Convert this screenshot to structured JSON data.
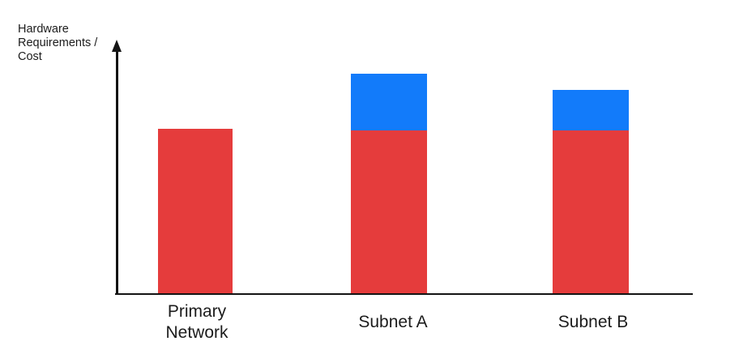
{
  "chart_data": {
    "type": "bar",
    "subtype": "stacked-vertical",
    "title": "",
    "ylabel": "Hardware\nRequirements /\nCost",
    "xlabel": "",
    "categories": [
      "Primary Network",
      "Subnet A",
      "Subnet B"
    ],
    "series": [
      {
        "name": "red-base-segment",
        "color": "#E53C3C",
        "values": [
          203,
          201,
          201
        ]
      },
      {
        "name": "blue-top-segment",
        "color": "#127BFA",
        "values": [
          0,
          70,
          50
        ]
      }
    ],
    "value_axis": {
      "tick_labels": "none",
      "units": "relative height (unlabeled axis)"
    },
    "grid": "off",
    "legend": "none",
    "notes": "Axis drawn as black arrow pointing up; no numeric ticks shown"
  },
  "colors": {
    "red": "#E53C3C",
    "blue": "#127BFA",
    "axis": "#141414",
    "text": "#1c1c1c",
    "background": "#ffffff"
  }
}
